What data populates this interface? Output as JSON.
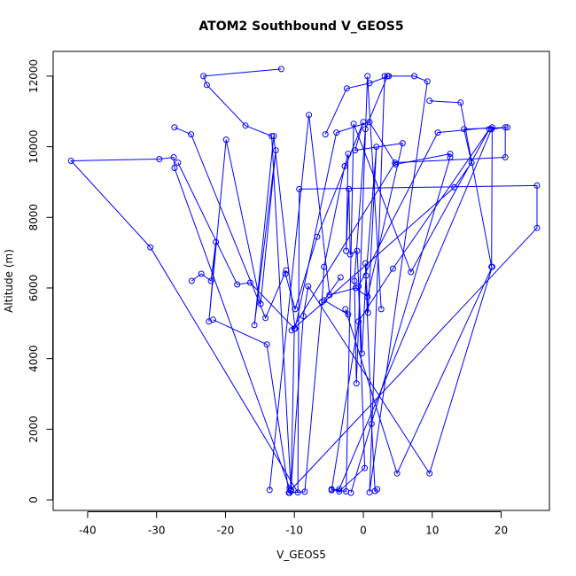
{
  "chart_data": {
    "type": "line",
    "title": "ATOM2 Southbound V_GEOS5",
    "xlabel": "V_GEOS5",
    "ylabel": "Altitude (m)",
    "xlim": [
      -45,
      27
    ],
    "ylim": [
      -300,
      12700
    ],
    "xticks": [
      -40,
      -30,
      -20,
      -10,
      0,
      10,
      20
    ],
    "yticks": [
      0,
      2000,
      4000,
      6000,
      8000,
      10000,
      12000
    ],
    "line_color": "#0000ff",
    "marker": "open-circle",
    "grid": false,
    "legend": "none",
    "series": [
      {
        "x": [
          -11.9,
          -23.2,
          -22.7,
          -17.1,
          -13.3,
          -10.5,
          25.2,
          25.2,
          -9.3,
          -9.5,
          -30.9,
          -42.4,
          -29.6,
          -27.5,
          -27.4,
          -10.7
        ],
        "y": [
          12200,
          12000,
          11750,
          10600,
          10300,
          280,
          7700,
          8900,
          8800,
          210,
          7150,
          9600,
          9650,
          9700,
          9400,
          330
        ]
      },
      {
        "x": [
          -27.4,
          -25.0,
          -14.2,
          -11.2,
          -11.3,
          -9.9,
          -6.7,
          0.0,
          -1.2,
          5.7,
          0.6,
          -1.1,
          -4.9,
          -7.9,
          -13.6
        ],
        "y": [
          10550,
          10350,
          5150,
          6500,
          6400,
          5400,
          7450,
          10700,
          9900,
          10100,
          5750,
          6000,
          5800,
          10900,
          280
        ]
      },
      {
        "x": [
          -24.9,
          -23.5,
          -22.1,
          -21.4,
          -22.4,
          -19.9,
          -14.9,
          -12.7,
          -15.8,
          -13.0,
          -9.9,
          -3.9,
          0.9,
          4.7,
          12.6,
          12.6,
          -1.8
        ],
        "y": [
          6200,
          6400,
          6200,
          7300,
          5050,
          10200,
          5550,
          9900,
          4950,
          10300,
          4850,
          10400,
          10700,
          9500,
          9800,
          9700,
          200
        ]
      },
      {
        "x": [
          -21.8,
          -14.0,
          -10.8,
          -8.5,
          -6.0,
          -5.7,
          -2.7,
          -2.2,
          -2.5,
          -2.1,
          -1.9,
          -0.9,
          -0.2,
          0.4,
          1.9,
          0.7,
          0.3,
          1.2,
          1.7,
          2.0
        ],
        "y": [
          5100,
          4400,
          200,
          230,
          5600,
          6600,
          9450,
          9800,
          7050,
          8800,
          6950,
          7050,
          4150,
          6350,
          10000,
          5300,
          6700,
          2150,
          250,
          300
        ]
      },
      {
        "x": [
          -5.5,
          -2.4,
          0.9,
          3.7,
          7.4,
          9.3,
          0.9,
          3.1,
          3.5,
          0.3,
          -1.3,
          -1.0,
          0.6,
          2.6
        ],
        "y": [
          10350,
          11650,
          11800,
          12000,
          12000,
          11850,
          210,
          12000,
          12000,
          10500,
          6200,
          3300,
          12000,
          5400
        ]
      },
      {
        "x": [
          9.6,
          14.1,
          18.6,
          18.7,
          10.8,
          -0.7,
          0.2,
          -3.5,
          -4.6,
          -2.5,
          -1.4,
          6.9,
          18.3,
          4.3,
          -0.7,
          -4.6,
          -3.5,
          18.6,
          20.6,
          20.6,
          4.6,
          -10.4,
          13.2,
          15.7,
          14.6,
          20.9
        ],
        "y": [
          11300,
          11250,
          6600,
          10550,
          10400,
          6050,
          900,
          240,
          300,
          240,
          10650,
          6450,
          10500,
          6550,
          5050,
          270,
          300,
          10500,
          10550,
          9700,
          9550,
          4800,
          8850,
          9550,
          10500,
          10550
        ]
      },
      {
        "x": [
          -26.9,
          -18.3,
          -16.4,
          -10.0,
          -10.5,
          -10.7,
          -10.5,
          -8.7,
          -8.0,
          9.6,
          18.7,
          4.9,
          -2.6,
          -2.2,
          -5.7,
          -3.3
        ],
        "y": [
          9550,
          6100,
          6150,
          4850,
          250,
          200,
          280,
          5200,
          6050,
          750,
          6600,
          750,
          5400,
          5250,
          5650,
          6300
        ]
      }
    ]
  }
}
